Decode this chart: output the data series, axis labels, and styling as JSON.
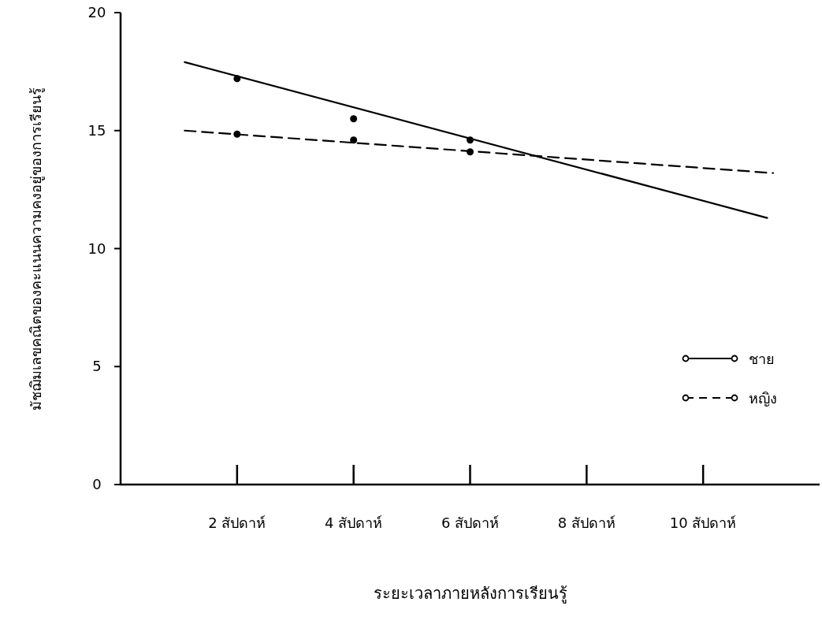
{
  "chart_data": {
    "type": "line",
    "xlabel": "ระยะเวลาภายหลังการเรียนรู้",
    "ylabel": "มัชฌิมเลขคณิตของคะแนนความคงอยู่ของการเรียนรู้",
    "xlim": [
      0,
      12
    ],
    "ylim": [
      0,
      20
    ],
    "yticks": [
      0,
      5,
      10,
      15,
      20
    ],
    "xticks": [
      {
        "value": 2,
        "label": "2 สัปดาห์"
      },
      {
        "value": 4,
        "label": "4 สัปดาห์"
      },
      {
        "value": 6,
        "label": "6 สัปดาห์"
      },
      {
        "value": 8,
        "label": "8 สัปดาห์"
      },
      {
        "value": 10,
        "label": "10 สัปดาห์"
      }
    ],
    "grid": false,
    "legend": "right",
    "series": [
      {
        "name": "ชาย",
        "color": "#000000",
        "line_style": "solid",
        "x": [
          1.1,
          11.1
        ],
        "values": [
          17.9,
          11.3
        ]
      },
      {
        "name": "หญิง",
        "color": "#000000",
        "line_style": "dashed",
        "x": [
          1.1,
          11.2
        ],
        "values": [
          15.0,
          13.2
        ]
      },
      {
        "type": "scatter",
        "color": "#000000",
        "marker": "circle",
        "x": [
          2,
          4,
          6
        ],
        "values": [
          17.2,
          15.5,
          14.6
        ]
      },
      {
        "type": "scatter",
        "color": "#000000",
        "marker": "circle",
        "x": [
          2,
          4,
          6
        ],
        "values": [
          14.85,
          14.6,
          14.1
        ]
      }
    ]
  }
}
